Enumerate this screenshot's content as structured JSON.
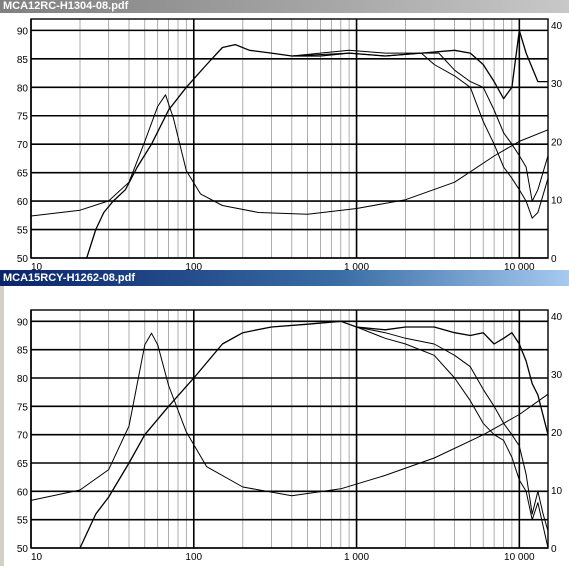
{
  "windows": [
    {
      "title": "MCA12RC-H1304-08.pdf",
      "active": false
    },
    {
      "title": "MCA15RCY-H1262-08.pdf",
      "active": true
    }
  ],
  "colors": {
    "active_title": "#0a246a",
    "inactive_title": "#808080",
    "grid": "#000000"
  },
  "chart_data": [
    {
      "type": "line",
      "title": "",
      "x_scale": "log",
      "xlim": [
        10,
        15000
      ],
      "ylim_left": [
        50,
        92
      ],
      "ylim_right": [
        0,
        41
      ],
      "x_ticks": [
        {
          "v": 10,
          "label": "10"
        },
        {
          "v": 100,
          "label": "100"
        },
        {
          "v": 1000,
          "label": "1 000"
        },
        {
          "v": 10000,
          "label": "10 000"
        }
      ],
      "y_left_ticks": [
        "50",
        "55",
        "60",
        "65",
        "70",
        "75",
        "80",
        "85",
        "90"
      ],
      "y_right_ticks": [
        "0",
        "10",
        "20",
        "30",
        "40"
      ],
      "series": [
        {
          "axis": "left",
          "points": [
            [
              22,
              50
            ],
            [
              25,
              55
            ],
            [
              28,
              58
            ],
            [
              32,
              60
            ],
            [
              38,
              62
            ],
            [
              45,
              66
            ],
            [
              55,
              70
            ],
            [
              70,
              76
            ],
            [
              90,
              80
            ],
            [
              120,
              84
            ],
            [
              150,
              87
            ],
            [
              180,
              87.5
            ],
            [
              220,
              86.5
            ],
            [
              300,
              86
            ],
            [
              400,
              85.5
            ],
            [
              600,
              85.5
            ],
            [
              900,
              86
            ],
            [
              1500,
              85.5
            ],
            [
              2500,
              86
            ],
            [
              4000,
              86.5
            ],
            [
              5000,
              86
            ],
            [
              6000,
              84
            ],
            [
              7000,
              81
            ],
            [
              8000,
              78
            ],
            [
              9000,
              80
            ],
            [
              10000,
              90
            ],
            [
              11000,
              86
            ],
            [
              13000,
              81
            ],
            [
              15000,
              81
            ]
          ]
        },
        {
          "axis": "left",
          "points": [
            [
              400,
              85.5
            ],
            [
              900,
              86.5
            ],
            [
              1500,
              86
            ],
            [
              2500,
              86
            ],
            [
              3000,
              84
            ],
            [
              4000,
              82
            ],
            [
              5000,
              80
            ],
            [
              6000,
              74
            ],
            [
              7000,
              70
            ],
            [
              8000,
              66
            ],
            [
              9000,
              64
            ],
            [
              10000,
              62
            ],
            [
              11000,
              60
            ],
            [
              12000,
              57
            ],
            [
              13000,
              58
            ],
            [
              15000,
              64
            ]
          ]
        },
        {
          "axis": "left",
          "points": [
            [
              400,
              85.5
            ],
            [
              900,
              86
            ],
            [
              1500,
              85.5
            ],
            [
              2500,
              86
            ],
            [
              3200,
              86
            ],
            [
              4000,
              83
            ],
            [
              5000,
              81
            ],
            [
              6000,
              80
            ],
            [
              7000,
              76
            ],
            [
              8000,
              72
            ],
            [
              9000,
              70
            ],
            [
              10000,
              68
            ],
            [
              11000,
              66
            ],
            [
              12000,
              60
            ],
            [
              13000,
              62
            ],
            [
              15000,
              68
            ]
          ]
        },
        {
          "axis": "right",
          "points": [
            [
              10,
              7.2
            ],
            [
              20,
              8.2
            ],
            [
              30,
              9.8
            ],
            [
              40,
              13
            ],
            [
              50,
              20
            ],
            [
              60,
              26
            ],
            [
              67,
              28
            ],
            [
              75,
              24
            ],
            [
              90,
              15
            ],
            [
              110,
              11
            ],
            [
              150,
              9
            ],
            [
              250,
              7.8
            ],
            [
              500,
              7.5
            ],
            [
              1000,
              8.5
            ],
            [
              2000,
              10
            ],
            [
              4000,
              13
            ],
            [
              7000,
              17.5
            ],
            [
              10000,
              20
            ],
            [
              15000,
              22
            ]
          ]
        }
      ]
    },
    {
      "type": "line",
      "title": "",
      "x_scale": "log",
      "xlim": [
        10,
        15000
      ],
      "ylim_left": [
        50,
        92
      ],
      "ylim_right": [
        0,
        41
      ],
      "x_ticks": [
        {
          "v": 10,
          "label": "10"
        },
        {
          "v": 100,
          "label": "100"
        },
        {
          "v": 1000,
          "label": "1 000"
        },
        {
          "v": 10000,
          "label": "10 000"
        }
      ],
      "y_left_ticks": [
        "50",
        "55",
        "60",
        "65",
        "70",
        "75",
        "80",
        "85",
        "90"
      ],
      "y_right_ticks": [
        "0",
        "10",
        "20",
        "30",
        "40"
      ],
      "series": [
        {
          "axis": "left",
          "points": [
            [
              20,
              50
            ],
            [
              25,
              56
            ],
            [
              30,
              59
            ],
            [
              40,
              65
            ],
            [
              50,
              70
            ],
            [
              70,
              75
            ],
            [
              100,
              80
            ],
            [
              150,
              86
            ],
            [
              200,
              88
            ],
            [
              300,
              89
            ],
            [
              500,
              89.5
            ],
            [
              800,
              90
            ],
            [
              1000,
              89
            ],
            [
              1500,
              88.5
            ],
            [
              2000,
              89
            ],
            [
              3000,
              89
            ],
            [
              4000,
              88
            ],
            [
              5000,
              87.5
            ],
            [
              6000,
              88
            ],
            [
              7000,
              86
            ],
            [
              8000,
              87
            ],
            [
              9000,
              88
            ],
            [
              10000,
              86
            ],
            [
              11000,
              83
            ],
            [
              12000,
              79
            ],
            [
              13000,
              77
            ],
            [
              15000,
              70
            ]
          ]
        },
        {
          "axis": "left",
          "points": [
            [
              1000,
              89
            ],
            [
              1500,
              87
            ],
            [
              2000,
              86
            ],
            [
              3000,
              84
            ],
            [
              4000,
              80
            ],
            [
              5000,
              76
            ],
            [
              6000,
              72
            ],
            [
              7000,
              70
            ],
            [
              8000,
              69
            ],
            [
              9000,
              66
            ],
            [
              10000,
              62
            ],
            [
              11000,
              60
            ],
            [
              12000,
              55
            ],
            [
              13000,
              58
            ],
            [
              15000,
              50
            ]
          ]
        },
        {
          "axis": "left",
          "points": [
            [
              1000,
              89
            ],
            [
              1500,
              88
            ],
            [
              2000,
              87
            ],
            [
              3000,
              86
            ],
            [
              4000,
              84
            ],
            [
              5000,
              82
            ],
            [
              6000,
              78
            ],
            [
              7000,
              75
            ],
            [
              8000,
              72
            ],
            [
              9000,
              70
            ],
            [
              10000,
              68
            ],
            [
              11000,
              63
            ],
            [
              12000,
              56
            ],
            [
              13000,
              60
            ],
            [
              14000,
              56
            ],
            [
              15000,
              53
            ]
          ]
        },
        {
          "axis": "right",
          "points": [
            [
              10,
              8.2
            ],
            [
              20,
              10
            ],
            [
              30,
              13.5
            ],
            [
              40,
              21
            ],
            [
              50,
              35
            ],
            [
              55,
              37
            ],
            [
              60,
              35
            ],
            [
              70,
              28
            ],
            [
              90,
              20
            ],
            [
              120,
              14
            ],
            [
              200,
              10.5
            ],
            [
              400,
              9
            ],
            [
              800,
              10.2
            ],
            [
              1500,
              12.5
            ],
            [
              3000,
              15.5
            ],
            [
              6000,
              19.5
            ],
            [
              10000,
              23
            ],
            [
              15000,
              26.5
            ]
          ]
        }
      ]
    }
  ]
}
